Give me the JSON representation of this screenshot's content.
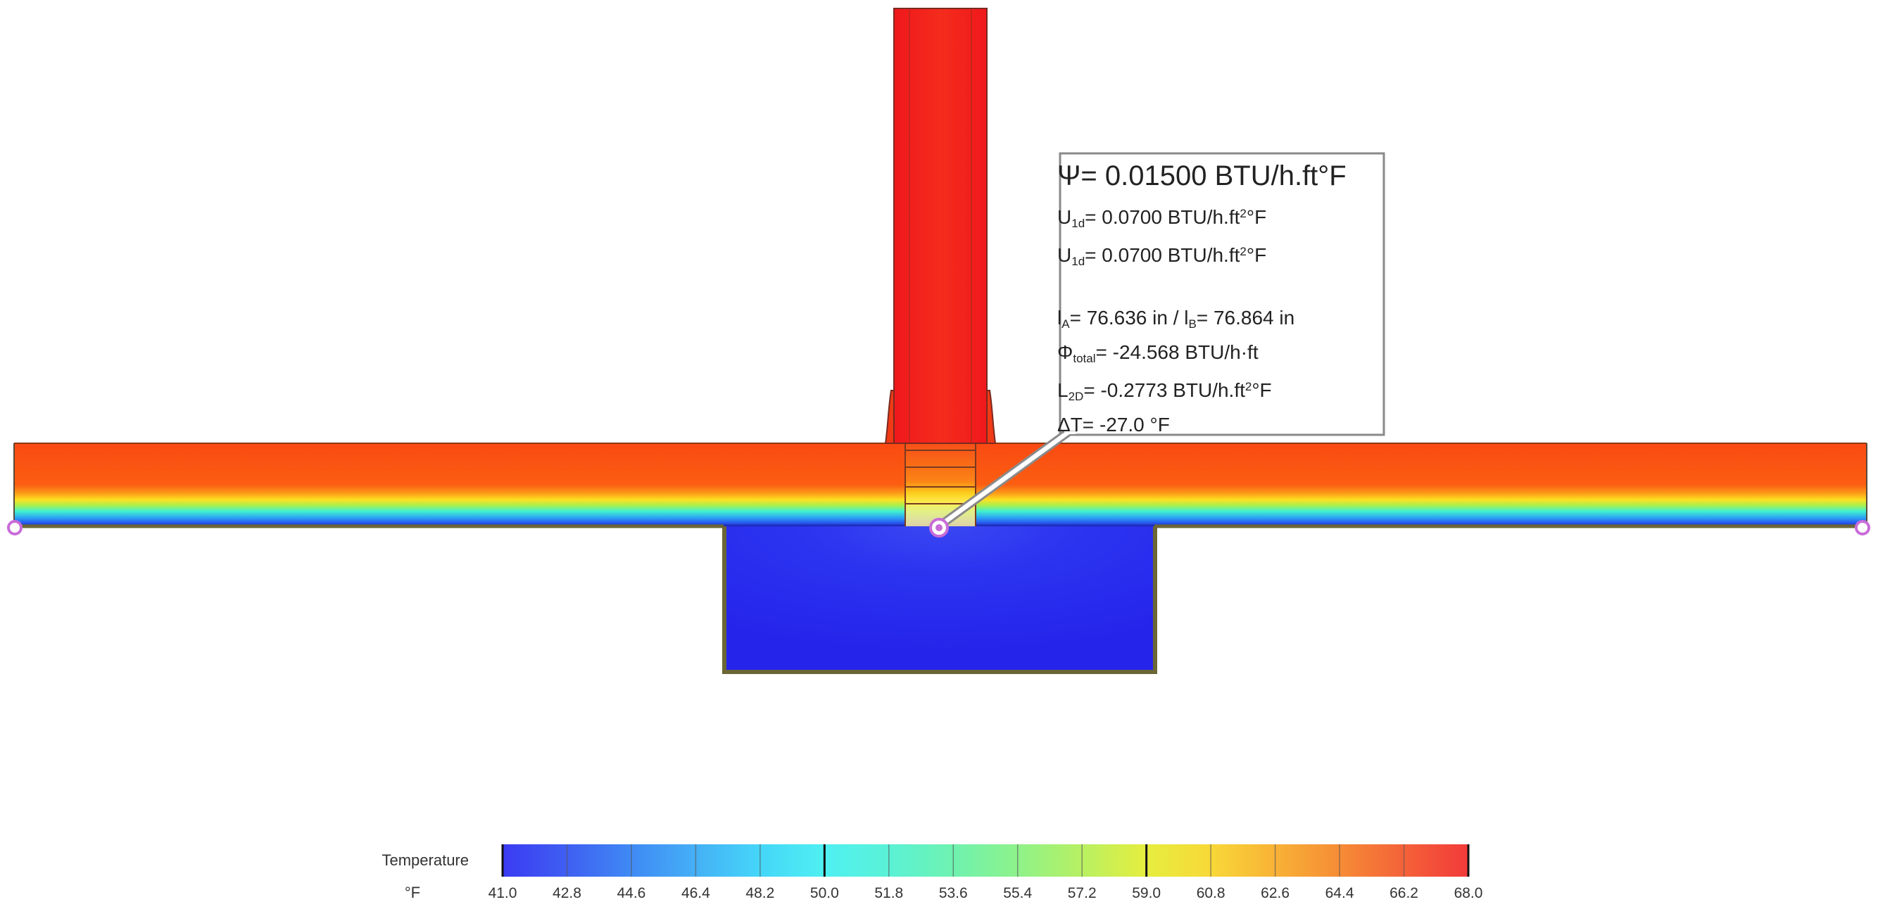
{
  "callout": {
    "psi": "Ψ= 0.01500 BTU/h.ft°F",
    "u1_sym": "U",
    "u1_sub": "1d",
    "u1_val": "= 0.0700 BTU/h.ft",
    "u1_sup": "2",
    "u1_unit": "°F",
    "u2_sym": "U",
    "u2_sub": "1d",
    "u2_val": "= 0.0700 BTU/h.ft",
    "u2_sup": "2",
    "u2_unit": "°F",
    "la_sym": "l",
    "la_sub": "A",
    "la_val": "= 76.636 in / l",
    "lb_sub": "B",
    "lb_val": "= 76.864 in",
    "phi_sym": "Φ",
    "phi_sub": "total",
    "phi_val": "= -24.568 BTU/h·ft",
    "l2d_sym": "L",
    "l2d_sub": "2D",
    "l2d_val": "= -0.2773 BTU/h.ft",
    "l2d_sup": "2",
    "l2d_unit": "°F",
    "dt": "ΔT= -27.0 °F"
  },
  "legend": {
    "title": "Temperature",
    "unit": "°F",
    "ticks": [
      "41.0",
      "42.8",
      "44.6",
      "46.4",
      "48.2",
      "50.0",
      "51.8",
      "53.6",
      "55.4",
      "57.2",
      "59.0",
      "60.8",
      "62.6",
      "64.4",
      "66.2",
      "68.0"
    ],
    "colors": [
      "#3b3bf2",
      "#3f5ff2",
      "#3f8af4",
      "#45b0f6",
      "#45d6f8",
      "#4ff0f2",
      "#5af2d6",
      "#6ef2b0",
      "#8ef28a",
      "#b8f062",
      "#e6ee3e",
      "#f8d838",
      "#f8b236",
      "#f68c36",
      "#f46238",
      "#f23a3a"
    ]
  },
  "colors": {
    "warm": "#fa4a14",
    "hot": "#f4281e",
    "cold": "#2a2af0",
    "outline": "#6b6636",
    "marker": "#c86cd8"
  }
}
